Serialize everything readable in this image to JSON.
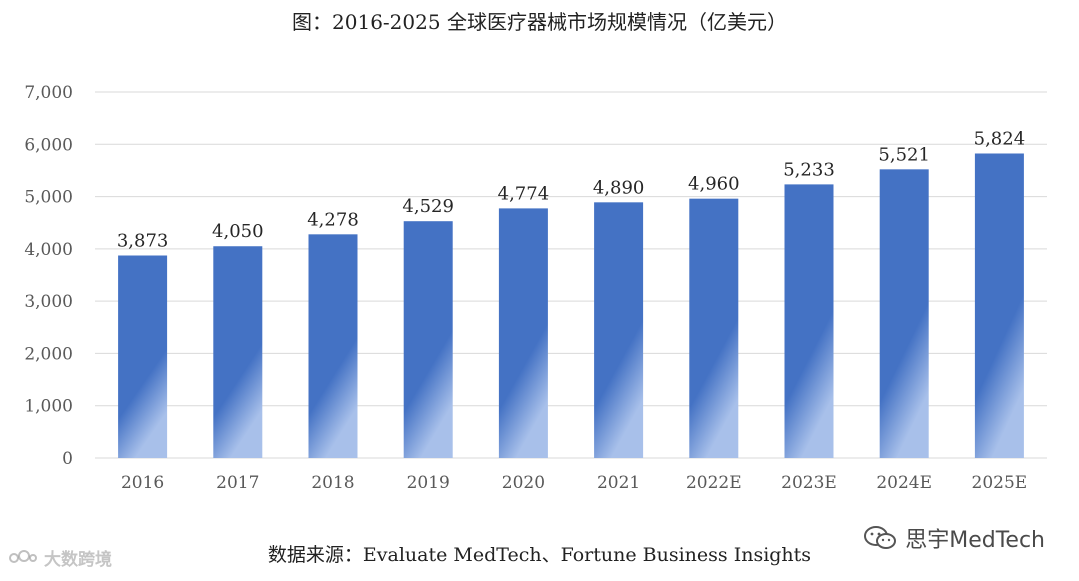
{
  "title": "图：2016-2025 全球医疗器械市场规模情况（亿美元）",
  "source": "数据来源：Evaluate MedTech、Fortune Business Insights",
  "watermark_left": "大数跨境",
  "watermark_right": "思宇MedTech",
  "watermark_right_icon": "wechat-icon",
  "colors": {
    "bar_top": "#4472C4",
    "bar_bottom_highlight": "#9FB8E6",
    "grid": "#D9D9D9",
    "axis_text": "#595959",
    "label_text": "#262626"
  },
  "chart_data": {
    "type": "bar",
    "title": "图：2016-2025 全球医疗器械市场规模情况（亿美元）",
    "xlabel": "",
    "ylabel": "",
    "categories": [
      "2016",
      "2017",
      "2018",
      "2019",
      "2020",
      "2021",
      "2022E",
      "2023E",
      "2024E",
      "2025E"
    ],
    "values": [
      3873,
      4050,
      4278,
      4529,
      4774,
      4890,
      4960,
      5233,
      5521,
      5824
    ],
    "value_labels": [
      "3,873",
      "4,050",
      "4,278",
      "4,529",
      "4,774",
      "4,890",
      "4,960",
      "5,233",
      "5,521",
      "5,824"
    ],
    "ylim": [
      0,
      7000
    ],
    "yticks": [
      0,
      1000,
      2000,
      3000,
      4000,
      5000,
      6000,
      7000
    ],
    "ytick_labels": [
      "0",
      "1,000",
      "2,000",
      "3,000",
      "4,000",
      "5,000",
      "6,000",
      "7,000"
    ],
    "grid": true,
    "legend": "none"
  }
}
